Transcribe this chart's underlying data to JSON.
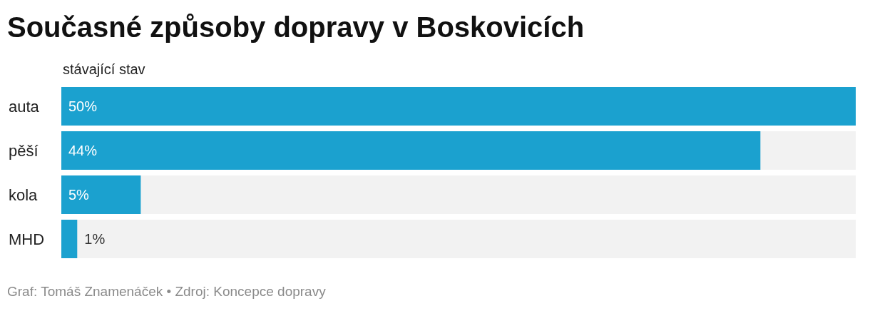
{
  "chart_data": {
    "type": "bar",
    "orientation": "horizontal",
    "title": "Současné způsoby dopravy v Boskovicích",
    "categories": [
      "auta",
      "pěší",
      "kola",
      "MHD"
    ],
    "series": [
      {
        "name": "stávající stav",
        "color": "#1ba1cf",
        "values": [
          50,
          44,
          5,
          1
        ],
        "value_labels": [
          "50%",
          "44%",
          "5%",
          "1%"
        ]
      }
    ],
    "annotations": [
      "Graf: Tomáš Znamenáček • Zdroj: Koncepce dopravy"
    ]
  }
}
